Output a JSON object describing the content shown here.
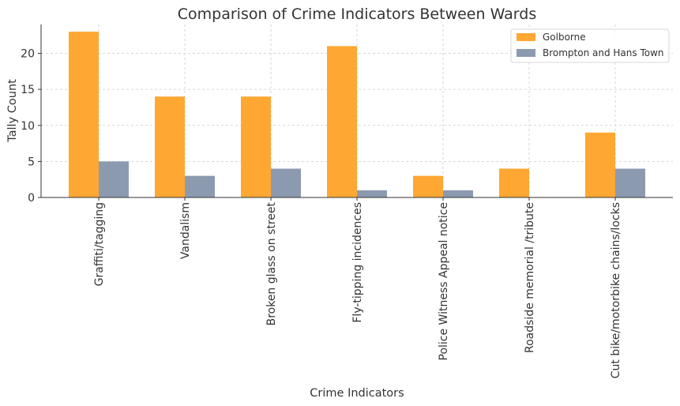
{
  "chart_data": {
    "type": "bar",
    "title": "Comparison of Crime Indicators Between Wards",
    "xlabel": "Crime Indicators",
    "ylabel": "Tally Count",
    "ylim": [
      0,
      24
    ],
    "yticks": [
      0,
      5,
      10,
      15,
      20
    ],
    "grid": true,
    "legend_position": "top-right",
    "categories": [
      "Graffiti/tagging",
      "Vandalism",
      "Broken glass on street",
      "Fly-tipping incidences",
      "Police Witness Appeal notice",
      "Roadside memorial /tribute",
      "Cut bike/motorbike chains/locks"
    ],
    "series": [
      {
        "name": "Golborne",
        "color": "#ffa733",
        "values": [
          23,
          14,
          14,
          21,
          3,
          4,
          9
        ]
      },
      {
        "name": "Brompton and Hans Town",
        "color": "#8c9ab0",
        "values": [
          5,
          3,
          4,
          1,
          1,
          0,
          4
        ]
      }
    ]
  }
}
